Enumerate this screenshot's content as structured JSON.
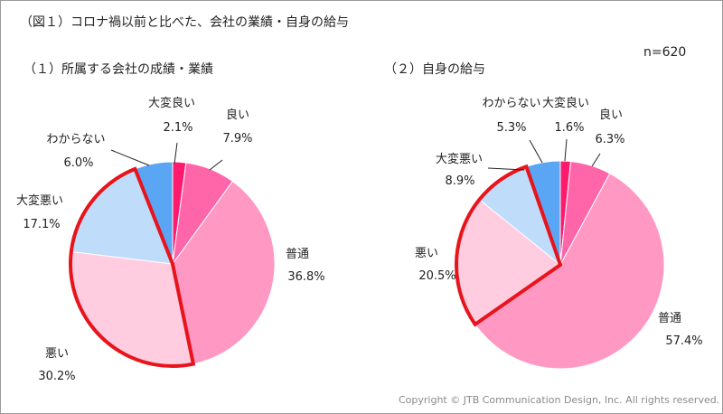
{
  "figure_title": "（図１）コロナ禍以前と比べた、会社の業績・自身の給与",
  "sample_size": "n=620",
  "copyright": "Copyright © JTB Communication Design, Inc. All rights reserved.",
  "colors": {
    "very_good": "#ff1a6e",
    "good": "#ff66aa",
    "normal": "#ff99c4",
    "bad": "#ffcce0",
    "very_bad": "#bfdcfb",
    "unknown": "#5aa6f5",
    "highlight": "#e8141c"
  },
  "chart_data": [
    {
      "type": "pie",
      "title": "（１）所属する会社の成績・業績",
      "start": "12 o'clock, clockwise",
      "categories": [
        "大変良い",
        "良い",
        "普通",
        "悪い",
        "大変悪い",
        "わからない"
      ],
      "values": [
        2.1,
        7.9,
        36.8,
        30.2,
        17.1,
        6.0
      ],
      "value_labels": [
        "2.1%",
        "7.9%",
        "36.8%",
        "30.2%",
        "17.1%",
        "6.0%"
      ],
      "highlighted": [
        "悪い",
        "大変悪い"
      ]
    },
    {
      "type": "pie",
      "title": "（２）自身の給与",
      "start": "12 o'clock, clockwise",
      "categories": [
        "大変良い",
        "良い",
        "普通",
        "悪い",
        "大変悪い",
        "わからない"
      ],
      "values": [
        1.6,
        6.3,
        57.4,
        20.5,
        8.9,
        5.3
      ],
      "value_labels": [
        "1.6%",
        "6.3%",
        "57.4%",
        "20.5%",
        "8.9%",
        "5.3%"
      ],
      "highlighted": [
        "悪い",
        "大変悪い"
      ]
    }
  ]
}
